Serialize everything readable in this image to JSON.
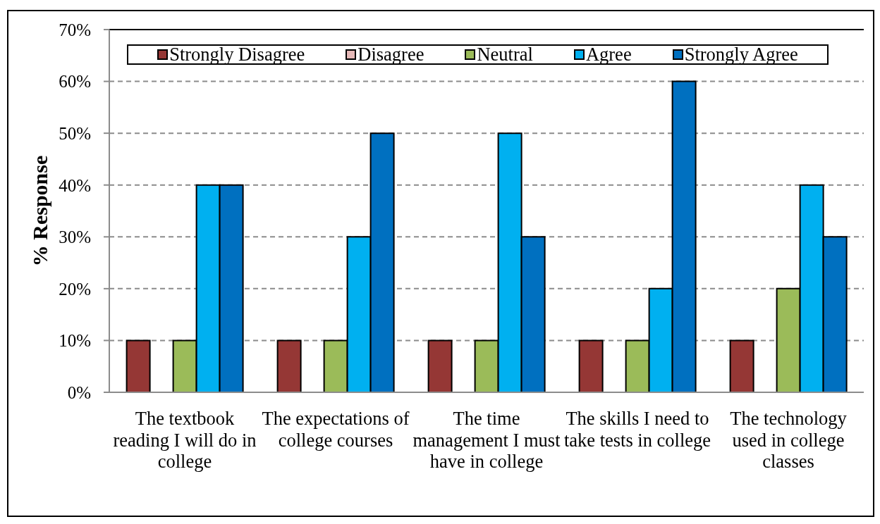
{
  "chart_data": {
    "type": "bar",
    "ylabel": "% Response",
    "categories": [
      "The textbook reading I will do in college",
      "The expectations of college courses",
      "The time management I must have in college",
      "The skills I need to take tests in college",
      "The technology used in college classes"
    ],
    "series": [
      {
        "name": "Strongly Disagree",
        "color": "#953735",
        "values": [
          10,
          10,
          10,
          10,
          10
        ]
      },
      {
        "name": "Disagree",
        "color": "#e6b9b8",
        "values": [
          0,
          0,
          0,
          0,
          0
        ]
      },
      {
        "name": "Neutral",
        "color": "#9bbb59",
        "values": [
          10,
          10,
          10,
          10,
          20
        ]
      },
      {
        "name": "Agree",
        "color": "#00b0f0",
        "values": [
          40,
          30,
          50,
          20,
          40
        ]
      },
      {
        "name": "Strongly Agree",
        "color": "#0070c0",
        "values": [
          40,
          50,
          30,
          60,
          30
        ]
      }
    ],
    "ylim": [
      0,
      70
    ],
    "yticks": [
      {
        "value": 0,
        "label": "0%"
      },
      {
        "value": 10,
        "label": "10%"
      },
      {
        "value": 20,
        "label": "20%"
      },
      {
        "value": 30,
        "label": "30%"
      },
      {
        "value": 40,
        "label": "40%"
      },
      {
        "value": 50,
        "label": "50%"
      },
      {
        "value": 60,
        "label": "60%"
      },
      {
        "value": 70,
        "label": "70%"
      }
    ],
    "grid": "y",
    "legend": "top"
  }
}
